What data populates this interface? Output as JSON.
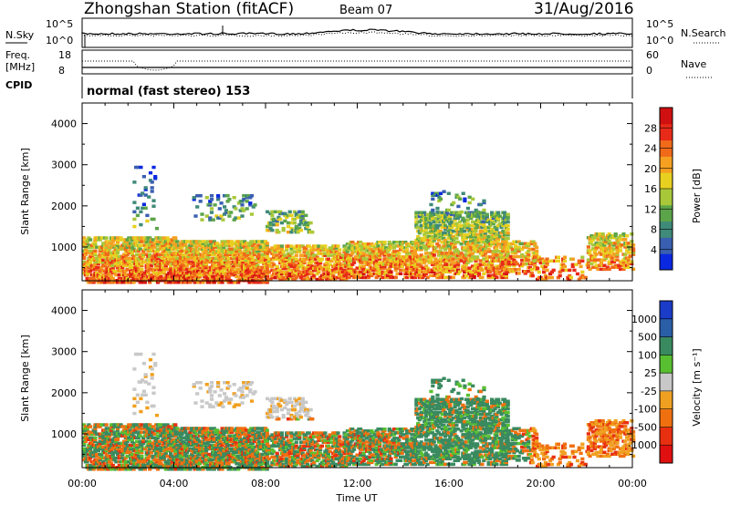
{
  "header": {
    "station": "Zhongshan Station (fitACF)",
    "beam": "Beam 07",
    "date": "31/Aug/2016"
  },
  "noise_panel": {
    "left_label": "N.Sky",
    "right_label": "N.Search",
    "left_ticks": [
      "10^5",
      "10^0"
    ],
    "right_ticks": [
      "10^5",
      "10^0"
    ]
  },
  "freq_panel": {
    "left_label_1": "Freq.",
    "left_label_2": "[MHz]",
    "left_ticks": [
      "18",
      "8"
    ],
    "right_label": "Nave",
    "right_ticks": [
      "60",
      "0"
    ]
  },
  "cpid_panel": {
    "label": "CPID",
    "text": "normal (fast stereo) 153"
  },
  "chart_data": [
    {
      "type": "heatmap",
      "title": "",
      "ylabel": "Slant Range [km]",
      "xlabel": "",
      "ylim": [
        180,
        4500
      ],
      "yticks": [
        1000,
        2000,
        3000,
        4000
      ],
      "xticks": [
        "00:00",
        "04:00",
        "08:00",
        "12:00",
        "16:00",
        "20:00",
        "00:00"
      ],
      "colorbar_label": "Power [dB]",
      "colorbar_ticks": [
        "4",
        "8",
        "12",
        "16",
        "20",
        "24",
        "28"
      ],
      "colorbar_colors": [
        "#0a28e0",
        "#3a5fb0",
        "#3f8a78",
        "#5ca44a",
        "#a8c83a",
        "#e8d020",
        "#f5a020",
        "#f06a1a",
        "#e82a18",
        "#d01010"
      ]
    },
    {
      "type": "heatmap",
      "title": "",
      "ylabel": "Slant Range [km]",
      "xlabel": "Time UT",
      "ylim": [
        180,
        4500
      ],
      "yticks": [
        1000,
        2000,
        3000,
        4000
      ],
      "xticks": [
        "00:00",
        "04:00",
        "08:00",
        "12:00",
        "16:00",
        "20:00",
        "00:00"
      ],
      "colorbar_label": "Velocity [m s⁻¹]",
      "colorbar_ticks": [
        "1000",
        "500",
        "100",
        "25",
        "-25",
        "-100",
        "-500",
        "-1000"
      ],
      "colorbar_colors": [
        "#1a3cc8",
        "#2a5fa8",
        "#3a8a60",
        "#58c030",
        "#c8c8c8",
        "#f0a020",
        "#f07010",
        "#e83010",
        "#e01010"
      ]
    }
  ]
}
